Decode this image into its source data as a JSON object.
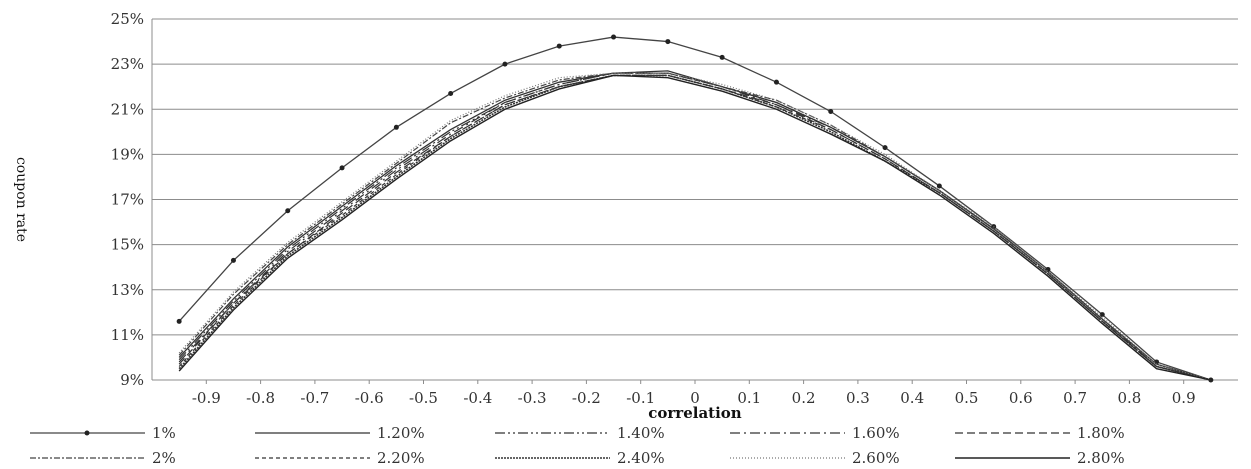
{
  "chart_data": {
    "type": "line",
    "xlabel": "correlation",
    "ylabel": "coupon rate",
    "x": [
      -0.95,
      -0.85,
      -0.75,
      -0.65,
      -0.55,
      -0.45,
      -0.35,
      -0.25,
      -0.15,
      -0.05,
      0.05,
      0.15,
      0.25,
      0.35,
      0.45,
      0.55,
      0.65,
      0.75,
      0.85,
      0.95
    ],
    "x_ticks": [
      "-0.9",
      "-0.8",
      "-0.7",
      "-0.6",
      "-0.5",
      "-0.4",
      "-0.3",
      "-0.2",
      "-0.1",
      "0",
      "0.1",
      "0.2",
      "0.3",
      "0.4",
      "0.5",
      "0.6",
      "0.7",
      "0.8",
      "0.9"
    ],
    "xlim": [
      -1.0,
      1.0
    ],
    "ylim": [
      9,
      25
    ],
    "y_ticks": [
      "9%",
      "11%",
      "13%",
      "15%",
      "17%",
      "19%",
      "21%",
      "23%",
      "25%"
    ],
    "grid": true,
    "legend_position": "bottom",
    "series": [
      {
        "name": "1%",
        "values": [
          11.6,
          14.3,
          16.5,
          18.4,
          20.2,
          21.7,
          23.0,
          23.8,
          24.2,
          24.0,
          23.3,
          22.2,
          20.9,
          19.3,
          17.6,
          15.8,
          13.9,
          11.9,
          9.8,
          9.0
        ],
        "style": "marker"
      },
      {
        "name": "1.20%",
        "values": [
          10.0,
          12.6,
          14.9,
          16.7,
          18.5,
          20.1,
          21.4,
          22.2,
          22.6,
          22.7,
          22.0,
          21.3,
          20.2,
          18.9,
          17.4,
          15.7,
          13.8,
          11.7,
          9.7,
          9.0
        ],
        "style": "solid"
      },
      {
        "name": "1.40%",
        "values": [
          9.9,
          12.5,
          14.8,
          16.6,
          18.4,
          20.0,
          21.3,
          22.1,
          22.6,
          22.6,
          22.0,
          21.3,
          20.2,
          18.9,
          17.4,
          15.7,
          13.8,
          11.7,
          9.7,
          9.0
        ],
        "style": "dashdotdot"
      },
      {
        "name": "1.60%",
        "values": [
          9.8,
          12.4,
          14.7,
          16.5,
          18.3,
          19.9,
          21.3,
          22.1,
          22.6,
          22.6,
          22.0,
          21.2,
          20.2,
          18.9,
          17.4,
          15.7,
          13.8,
          11.7,
          9.6,
          9.0
        ],
        "style": "dashdot"
      },
      {
        "name": "1.80%",
        "values": [
          9.7,
          12.4,
          14.6,
          16.4,
          18.2,
          19.8,
          21.2,
          22.0,
          22.5,
          22.5,
          21.9,
          21.2,
          20.1,
          18.8,
          17.3,
          15.6,
          13.7,
          11.6,
          9.6,
          9.0
        ],
        "style": "dash"
      },
      {
        "name": "2%",
        "values": [
          10.1,
          12.8,
          15.0,
          16.8,
          18.6,
          20.4,
          21.5,
          22.3,
          22.6,
          22.6,
          22.0,
          21.4,
          20.3,
          18.9,
          17.4,
          15.7,
          13.8,
          11.7,
          9.7,
          9.0
        ],
        "style": "dashdotdense"
      },
      {
        "name": "2.20%",
        "values": [
          9.6,
          12.3,
          14.6,
          16.3,
          18.1,
          19.8,
          21.2,
          22.0,
          22.5,
          22.5,
          21.9,
          21.1,
          20.1,
          18.8,
          17.3,
          15.6,
          13.7,
          11.6,
          9.6,
          9.0
        ],
        "style": "shortdash"
      },
      {
        "name": "2.40%",
        "values": [
          9.5,
          12.2,
          14.5,
          16.2,
          18.0,
          19.7,
          21.1,
          22.0,
          22.5,
          22.5,
          21.9,
          21.1,
          20.0,
          18.7,
          17.3,
          15.6,
          13.7,
          11.6,
          9.6,
          9.0
        ],
        "style": "dotted"
      },
      {
        "name": "2.60%",
        "values": [
          10.2,
          12.9,
          15.1,
          16.9,
          18.7,
          20.5,
          21.6,
          22.4,
          22.6,
          22.6,
          22.1,
          21.4,
          20.3,
          19.0,
          17.4,
          15.8,
          13.8,
          11.8,
          9.7,
          9.0
        ],
        "style": "lightdot"
      },
      {
        "name": "2.80%",
        "values": [
          9.4,
          12.1,
          14.4,
          16.1,
          17.9,
          19.6,
          21.0,
          21.9,
          22.5,
          22.4,
          21.8,
          21.0,
          19.9,
          18.7,
          17.2,
          15.5,
          13.6,
          11.5,
          9.5,
          9.0
        ],
        "style": "solidmarker"
      }
    ]
  }
}
